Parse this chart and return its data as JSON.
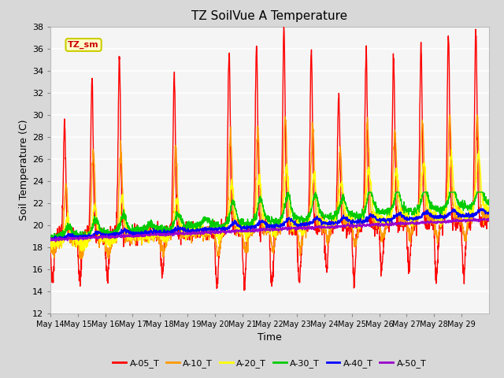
{
  "title": "TZ SoilVue A Temperature",
  "xlabel": "Time",
  "ylabel": "Soil Temperature (C)",
  "ylim": [
    12,
    38
  ],
  "yticks": [
    12,
    14,
    16,
    18,
    20,
    22,
    24,
    26,
    28,
    30,
    32,
    34,
    36,
    38
  ],
  "fig_bg": "#d8d8d8",
  "plot_bg": "#f5f5f5",
  "grid_color": "#ffffff",
  "annotation_text": "TZ_sm",
  "annotation_color": "#cc0000",
  "annotation_bg": "#ffffcc",
  "annotation_border": "#cccc00",
  "legend_entries": [
    "A-05_T",
    "A-10_T",
    "A-20_T",
    "A-30_T",
    "A-40_T",
    "A-50_T"
  ],
  "line_colors": [
    "#ff0000",
    "#ff9900",
    "#ffff00",
    "#00cc00",
    "#0000ff",
    "#9900cc"
  ],
  "num_days": 16,
  "start_day": 14,
  "x_tick_labels": [
    "May 14",
    "May 15",
    "May 16",
    "May 17",
    "May 18",
    "May 19",
    "May 20",
    "May 21",
    "May 22",
    "May 23",
    "May 24",
    "May 25",
    "May 26",
    "May 27",
    "May 28",
    "May 29"
  ]
}
